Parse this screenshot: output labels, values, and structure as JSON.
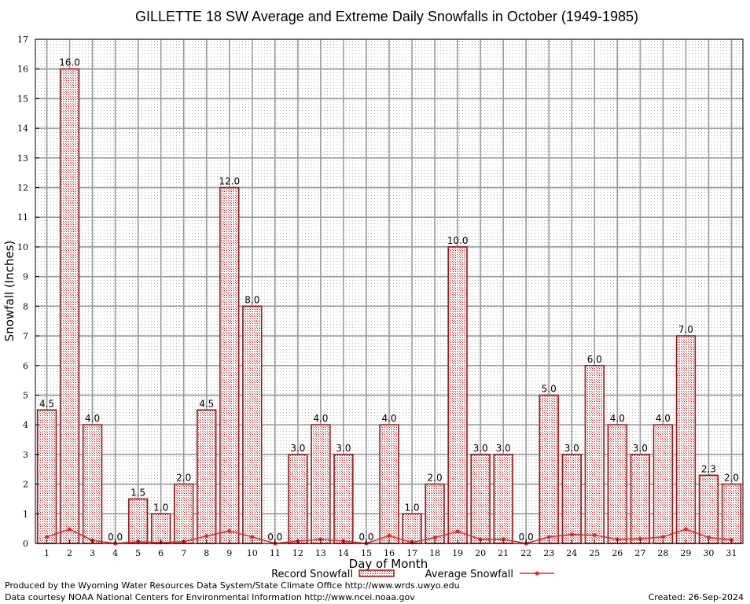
{
  "chart_data": {
    "type": "bar",
    "title": "GILLETTE 18 SW Average and Extreme Daily Snowfalls in October (1949-1985)",
    "xlabel": "Day of Month",
    "ylabel": "Snowfall (Inches)",
    "ylim": [
      0,
      17
    ],
    "yticks": [
      "0",
      "1",
      "2",
      "3",
      "4",
      "5",
      "6",
      "7",
      "8",
      "9",
      "10",
      "11",
      "12",
      "13",
      "14",
      "15",
      "16",
      "17"
    ],
    "categories": [
      "1",
      "2",
      "3",
      "4",
      "5",
      "6",
      "7",
      "8",
      "9",
      "10",
      "11",
      "12",
      "13",
      "14",
      "15",
      "16",
      "17",
      "18",
      "19",
      "20",
      "21",
      "22",
      "23",
      "24",
      "25",
      "26",
      "27",
      "28",
      "29",
      "30",
      "31"
    ],
    "series": [
      {
        "name": "Record Snowfall",
        "type": "bar",
        "color": "#a01818",
        "values": [
          4.5,
          16.0,
          4.0,
          0.0,
          1.5,
          1.0,
          2.0,
          4.5,
          12.0,
          8.0,
          0.0,
          3.0,
          4.0,
          3.0,
          0.0,
          4.0,
          1.0,
          2.0,
          10.0,
          3.0,
          3.0,
          0.0,
          5.0,
          3.0,
          6.0,
          4.0,
          3.0,
          4.0,
          7.0,
          2.3,
          2.0
        ],
        "labels": [
          "4.5",
          "16.0",
          "4.0",
          "0.0",
          "1.5",
          "1.0",
          "2.0",
          "4.5",
          "12.0",
          "8.0",
          "0.0",
          "3.0",
          "4.0",
          "3.0",
          "0.0",
          "4.0",
          "1.0",
          "2.0",
          "10.0",
          "3.0",
          "3.0",
          "0.0",
          "5.0",
          "3.0",
          "6.0",
          "4.0",
          "3.0",
          "4.0",
          "7.0",
          "2.3",
          "2.0"
        ]
      },
      {
        "name": "Average Snowfall",
        "type": "line",
        "color": "#ee2222",
        "values": [
          0.22,
          0.48,
          0.1,
          0.0,
          0.06,
          0.03,
          0.06,
          0.25,
          0.42,
          0.22,
          0.0,
          0.08,
          0.14,
          0.08,
          0.0,
          0.26,
          0.03,
          0.2,
          0.4,
          0.14,
          0.14,
          0.0,
          0.22,
          0.3,
          0.28,
          0.14,
          0.16,
          0.22,
          0.48,
          0.2,
          0.12
        ]
      }
    ],
    "grid": true,
    "legend_position": "bottom-center"
  },
  "footer": {
    "produced_by": "Produced by the Wyoming Water Resources Data System/State Climate Office http://www.wrds.uwyo.edu",
    "data_courtesy": "Data courtesy NOAA National Centers for Environmental Information http://www.ncei.noaa.gov",
    "created": "Created:  26-Sep-2024"
  }
}
